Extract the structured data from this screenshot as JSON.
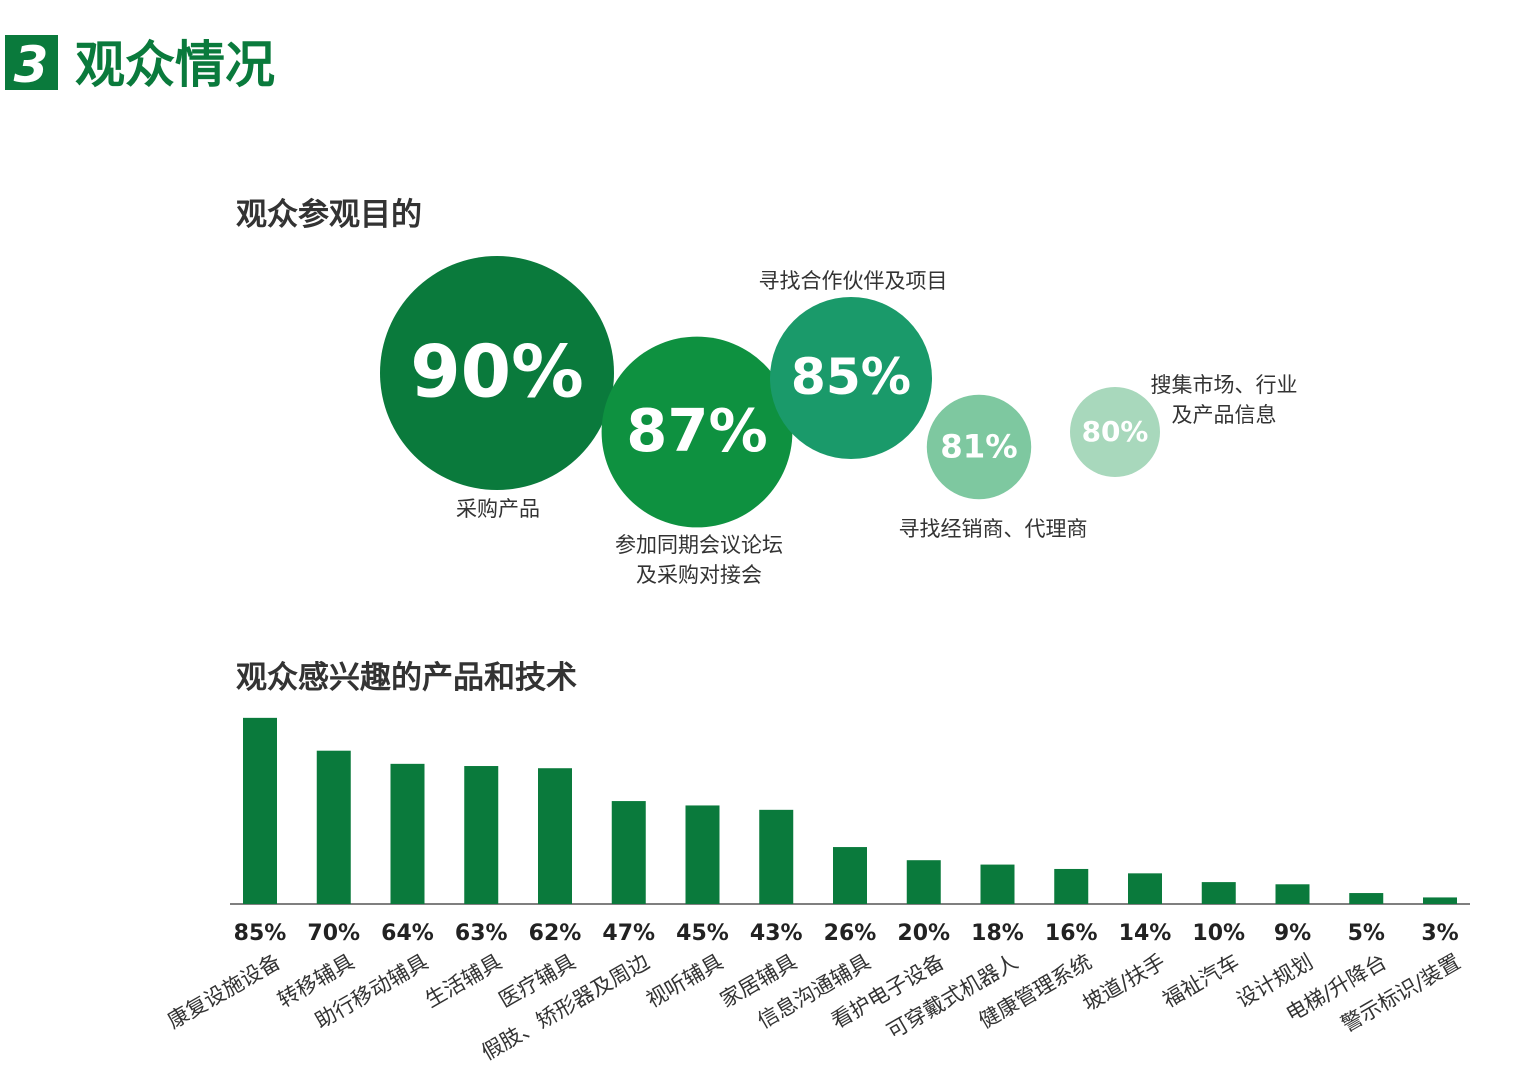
{
  "header": {
    "number": "3",
    "title": "观众情况"
  },
  "chart_data": [
    {
      "type": "bubble",
      "title": "观众参观目的",
      "categories": [
        "采购产品",
        "参加同期会议论坛\n及采购对接会",
        "寻找合作伙伴及项目",
        "寻找经销商、代理商",
        "搜集市场、行业\n及产品信息"
      ],
      "values": [
        90,
        87,
        85,
        81,
        80
      ],
      "value_labels": [
        "90%",
        "87%",
        "85%",
        "81%",
        "80%"
      ],
      "colors": [
        "#0a7a3c",
        "#0e9140",
        "#1a9a6a",
        "#7ec8a0",
        "#a8d8bc"
      ]
    },
    {
      "type": "bar",
      "title": "观众感兴趣的产品和技术",
      "categories": [
        "康复设施设备",
        "转移辅具",
        "助行移动辅具",
        "生活辅具",
        "医疗辅具",
        "假肢、矫形器及周边",
        "视听辅具",
        "家居辅具",
        "信息沟通辅具",
        "看护电子设备",
        "可穿戴式机器人",
        "健康管理系统",
        "坡道/扶手",
        "福祉汽车",
        "设计规划",
        "电梯/升降台",
        "警示标识/装置"
      ],
      "values": [
        85,
        70,
        64,
        63,
        62,
        47,
        45,
        43,
        26,
        20,
        18,
        16,
        14,
        10,
        9,
        5,
        3
      ],
      "value_labels": [
        "85%",
        "70%",
        "64%",
        "63%",
        "62%",
        "47%",
        "45%",
        "43%",
        "26%",
        "20%",
        "18%",
        "16%",
        "14%",
        "10%",
        "9%",
        "5%",
        "3%"
      ],
      "color": "#0a7a3c"
    }
  ]
}
